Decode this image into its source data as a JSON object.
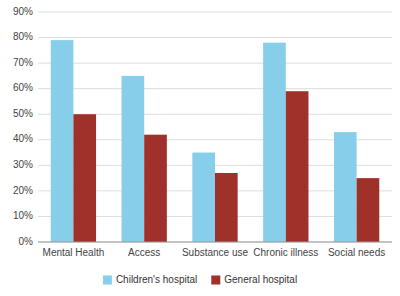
{
  "chart_data": {
    "type": "bar",
    "categories": [
      "Mental Health",
      "Access",
      "Substance use",
      "Chronic illness",
      "Social needs"
    ],
    "series": [
      {
        "name": "Children's hospital",
        "color": "#87CEEB",
        "values": [
          79,
          65,
          35,
          78,
          43
        ]
      },
      {
        "name": "General hospital",
        "color": "#A0302A",
        "values": [
          50,
          42,
          27,
          59,
          25
        ]
      }
    ],
    "ylim": [
      0,
      90
    ],
    "yticks": [
      {
        "value": 0,
        "label": "0%"
      },
      {
        "value": 10,
        "label": "10%"
      },
      {
        "value": 20,
        "label": "20%"
      },
      {
        "value": 30,
        "label": "30%"
      },
      {
        "value": 40,
        "label": "40%"
      },
      {
        "value": 50,
        "label": "50%"
      },
      {
        "value": 60,
        "label": "60%"
      },
      {
        "value": 70,
        "label": "70%"
      },
      {
        "value": 80,
        "label": "80%"
      },
      {
        "value": 90,
        "label": "90%"
      }
    ],
    "grid": true,
    "legend": "bottom"
  }
}
